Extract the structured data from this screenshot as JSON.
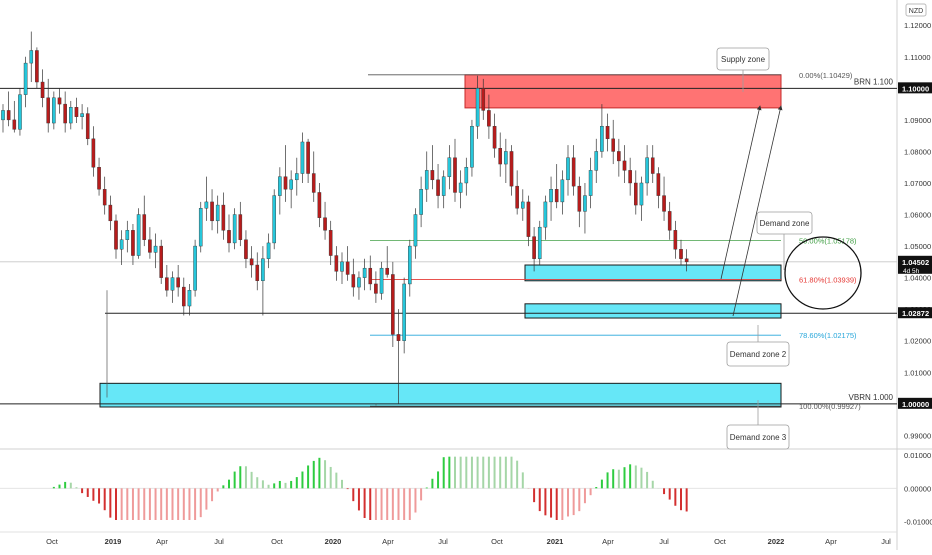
{
  "symbol_badge": "NZD",
  "top_text": "1.10429 (1.1...)",
  "colors": {
    "up": "#26c6da",
    "down": "#b71c1c",
    "supply_fill": "#f44336",
    "supply_fill_alpha": "#ff6b6b",
    "demand_fill": "#5ee6f7",
    "demand_border": "#1a1a1a",
    "fib_0": "#555555",
    "fib_50": "#43a047",
    "fib_618": "#e53935",
    "fib_786": "#26a6da",
    "fib_100": "#555555",
    "osc_up_strong": "#2ecc40",
    "osc_up_weak": "#a5d6a7",
    "osc_down_strong": "#d32f2f",
    "osc_down_weak": "#ef9a9a",
    "axis_text": "#333333",
    "grid": "#eeeeee"
  },
  "chart_data": {
    "type": "candlestick",
    "price_axis": {
      "ylim": [
        0.986,
        1.128
      ],
      "ticks": [
        "0.99000",
        "1.00000",
        "1.01000",
        "1.02000",
        "1.03000",
        "1.04000",
        "1.05000",
        "1.06000",
        "1.07000",
        "1.08000",
        "1.09000",
        "1.10000",
        "1.11000",
        "1.12000"
      ],
      "tick_values": [
        0.99,
        1.0,
        1.01,
        1.02,
        1.03,
        1.04,
        1.05,
        1.06,
        1.07,
        1.08,
        1.09,
        1.1,
        1.11,
        1.12
      ]
    },
    "time_axis": {
      "labels": [
        "Oct",
        "2019",
        "Apr",
        "Jul",
        "Oct",
        "2020",
        "Apr",
        "Jul",
        "Oct",
        "2021",
        "Apr",
        "Jul",
        "Oct",
        "2022",
        "Apr",
        "Jul"
      ],
      "bold": [
        false,
        true,
        false,
        false,
        false,
        true,
        false,
        false,
        false,
        true,
        false,
        false,
        false,
        true,
        false,
        false
      ]
    },
    "price_labels": [
      {
        "text": "1.10000",
        "value": 1.1,
        "style": "black"
      },
      {
        "text": "1.04502",
        "value": 1.04502,
        "style": "black",
        "sub": "4d 5h"
      },
      {
        "text": "1.02872",
        "value": 1.02872,
        "style": "black"
      },
      {
        "text": "1.00000",
        "value": 1.0,
        "style": "black"
      }
    ],
    "horizontal_lines": [
      {
        "label": "BRN 1.100",
        "value": 1.1
      },
      {
        "label": "",
        "value": 1.02872
      },
      {
        "label": "VBRN 1.000",
        "value": 1.0
      }
    ],
    "fib_levels": [
      {
        "label": "0.00%(1.10429)",
        "value": 1.10429,
        "color_key": "fib_0"
      },
      {
        "label": "50.00%(1.05178)",
        "value": 1.05178,
        "color_key": "fib_50"
      },
      {
        "label": "61.80%(1.03939)",
        "value": 1.03939,
        "color_key": "fib_618"
      },
      {
        "label": "78.60%(1.02175)",
        "value": 1.02175,
        "color_key": "fib_786"
      },
      {
        "label": "100.00%(0.99927)",
        "value": 0.99927,
        "color_key": "fib_100"
      }
    ],
    "zones": [
      {
        "label": "Supply zone",
        "kind": "supply",
        "top": 1.1043,
        "bottom": 1.0938
      },
      {
        "label": "Demand zone",
        "kind": "demand",
        "top": 1.044,
        "bottom": 1.039
      },
      {
        "label": "Demand zone 2",
        "kind": "demand",
        "top": 1.0317,
        "bottom": 1.0272
      },
      {
        "label": "Demand zone 3",
        "kind": "demand",
        "top": 1.0065,
        "bottom": 0.999
      }
    ],
    "oscillator": {
      "ticks": [
        "0.01000",
        "0.00000",
        "-0.01000"
      ],
      "tick_values": [
        0.01,
        0.0,
        -0.01
      ],
      "ylim": [
        -0.0125,
        0.0115
      ]
    },
    "candles": [
      [
        1.09,
        1.095,
        1.086,
        1.093
      ],
      [
        1.093,
        1.099,
        1.088,
        1.09
      ],
      [
        1.09,
        1.096,
        1.086,
        1.087
      ],
      [
        1.087,
        1.1,
        1.085,
        1.098
      ],
      [
        1.098,
        1.11,
        1.094,
        1.108
      ],
      [
        1.108,
        1.118,
        1.102,
        1.112
      ],
      [
        1.112,
        1.113,
        1.1,
        1.102
      ],
      [
        1.102,
        1.106,
        1.094,
        1.097
      ],
      [
        1.097,
        1.103,
        1.086,
        1.089
      ],
      [
        1.089,
        1.099,
        1.087,
        1.097
      ],
      [
        1.097,
        1.1,
        1.092,
        1.095
      ],
      [
        1.095,
        1.099,
        1.086,
        1.089
      ],
      [
        1.089,
        1.096,
        1.087,
        1.094
      ],
      [
        1.094,
        1.097,
        1.089,
        1.091
      ],
      [
        1.091,
        1.095,
        1.087,
        1.092
      ],
      [
        1.092,
        1.094,
        1.082,
        1.084
      ],
      [
        1.084,
        1.088,
        1.072,
        1.075
      ],
      [
        1.075,
        1.078,
        1.066,
        1.068
      ],
      [
        1.068,
        1.072,
        1.06,
        1.063
      ],
      [
        1.063,
        1.066,
        1.055,
        1.058
      ],
      [
        1.058,
        1.06,
        1.046,
        1.049
      ],
      [
        1.049,
        1.055,
        1.044,
        1.052
      ],
      [
        1.052,
        1.058,
        1.048,
        1.055
      ],
      [
        1.055,
        1.057,
        1.044,
        1.047
      ],
      [
        1.047,
        1.062,
        1.046,
        1.06
      ],
      [
        1.06,
        1.066,
        1.05,
        1.052
      ],
      [
        1.052,
        1.056,
        1.046,
        1.048
      ],
      [
        1.048,
        1.054,
        1.043,
        1.05
      ],
      [
        1.05,
        1.052,
        1.038,
        1.04
      ],
      [
        1.04,
        1.044,
        1.034,
        1.036
      ],
      [
        1.036,
        1.042,
        1.032,
        1.04
      ],
      [
        1.04,
        1.044,
        1.034,
        1.037
      ],
      [
        1.037,
        1.04,
        1.028,
        1.031
      ],
      [
        1.031,
        1.038,
        1.028,
        1.036
      ],
      [
        1.036,
        1.052,
        1.034,
        1.05
      ],
      [
        1.05,
        1.064,
        1.048,
        1.062
      ],
      [
        1.062,
        1.072,
        1.058,
        1.064
      ],
      [
        1.064,
        1.068,
        1.055,
        1.058
      ],
      [
        1.058,
        1.066,
        1.054,
        1.063
      ],
      [
        1.063,
        1.067,
        1.052,
        1.055
      ],
      [
        1.055,
        1.06,
        1.048,
        1.051
      ],
      [
        1.051,
        1.062,
        1.049,
        1.06
      ],
      [
        1.06,
        1.064,
        1.05,
        1.052
      ],
      [
        1.052,
        1.055,
        1.043,
        1.046
      ],
      [
        1.046,
        1.05,
        1.04,
        1.044
      ],
      [
        1.044,
        1.048,
        1.036,
        1.039
      ],
      [
        1.039,
        1.05,
        1.028,
        1.046
      ],
      [
        1.046,
        1.054,
        1.043,
        1.051
      ],
      [
        1.051,
        1.068,
        1.049,
        1.066
      ],
      [
        1.066,
        1.075,
        1.06,
        1.072
      ],
      [
        1.072,
        1.082,
        1.064,
        1.068
      ],
      [
        1.068,
        1.074,
        1.062,
        1.071
      ],
      [
        1.071,
        1.078,
        1.066,
        1.073
      ],
      [
        1.073,
        1.086,
        1.07,
        1.083
      ],
      [
        1.083,
        1.084,
        1.07,
        1.073
      ],
      [
        1.073,
        1.08,
        1.064,
        1.067
      ],
      [
        1.067,
        1.07,
        1.056,
        1.059
      ],
      [
        1.059,
        1.064,
        1.052,
        1.055
      ],
      [
        1.055,
        1.058,
        1.044,
        1.047
      ],
      [
        1.047,
        1.05,
        1.039,
        1.042
      ],
      [
        1.042,
        1.048,
        1.038,
        1.045
      ],
      [
        1.045,
        1.05,
        1.039,
        1.041
      ],
      [
        1.041,
        1.046,
        1.034,
        1.037
      ],
      [
        1.037,
        1.042,
        1.033,
        1.04
      ],
      [
        1.04,
        1.046,
        1.036,
        1.043
      ],
      [
        1.043,
        1.047,
        1.036,
        1.038
      ],
      [
        1.038,
        1.042,
        1.032,
        1.035
      ],
      [
        1.035,
        1.045,
        1.033,
        1.043
      ],
      [
        1.043,
        1.05,
        1.04,
        1.041
      ],
      [
        1.041,
        1.045,
        1.018,
        1.022
      ],
      [
        1.022,
        1.03,
        1.0,
        1.02
      ],
      [
        1.02,
        1.04,
        1.016,
        1.038
      ],
      [
        1.038,
        1.052,
        1.034,
        1.05
      ],
      [
        1.05,
        1.062,
        1.046,
        1.06
      ],
      [
        1.06,
        1.072,
        1.056,
        1.068
      ],
      [
        1.068,
        1.08,
        1.064,
        1.074
      ],
      [
        1.074,
        1.082,
        1.068,
        1.071
      ],
      [
        1.071,
        1.076,
        1.062,
        1.066
      ],
      [
        1.066,
        1.074,
        1.062,
        1.072
      ],
      [
        1.072,
        1.082,
        1.068,
        1.078
      ],
      [
        1.078,
        1.084,
        1.064,
        1.067
      ],
      [
        1.067,
        1.074,
        1.062,
        1.07
      ],
      [
        1.07,
        1.078,
        1.066,
        1.075
      ],
      [
        1.075,
        1.09,
        1.072,
        1.088
      ],
      [
        1.088,
        1.104,
        1.084,
        1.1
      ],
      [
        1.1,
        1.103,
        1.09,
        1.093
      ],
      [
        1.093,
        1.098,
        1.084,
        1.088
      ],
      [
        1.088,
        1.092,
        1.078,
        1.081
      ],
      [
        1.081,
        1.086,
        1.072,
        1.076
      ],
      [
        1.076,
        1.084,
        1.07,
        1.08
      ],
      [
        1.08,
        1.082,
        1.066,
        1.069
      ],
      [
        1.069,
        1.074,
        1.06,
        1.062
      ],
      [
        1.062,
        1.068,
        1.058,
        1.064
      ],
      [
        1.064,
        1.066,
        1.05,
        1.053
      ],
      [
        1.053,
        1.056,
        1.042,
        1.046
      ],
      [
        1.046,
        1.058,
        1.044,
        1.056
      ],
      [
        1.056,
        1.066,
        1.052,
        1.064
      ],
      [
        1.064,
        1.072,
        1.058,
        1.068
      ],
      [
        1.068,
        1.076,
        1.062,
        1.064
      ],
      [
        1.064,
        1.074,
        1.06,
        1.071
      ],
      [
        1.071,
        1.082,
        1.066,
        1.078
      ],
      [
        1.078,
        1.082,
        1.066,
        1.069
      ],
      [
        1.069,
        1.072,
        1.056,
        1.061
      ],
      [
        1.061,
        1.07,
        1.054,
        1.066
      ],
      [
        1.066,
        1.078,
        1.062,
        1.074
      ],
      [
        1.074,
        1.084,
        1.07,
        1.08
      ],
      [
        1.08,
        1.095,
        1.078,
        1.088
      ],
      [
        1.088,
        1.092,
        1.08,
        1.084
      ],
      [
        1.084,
        1.09,
        1.076,
        1.08
      ],
      [
        1.08,
        1.084,
        1.072,
        1.077
      ],
      [
        1.077,
        1.082,
        1.07,
        1.074
      ],
      [
        1.074,
        1.078,
        1.066,
        1.07
      ],
      [
        1.07,
        1.074,
        1.06,
        1.063
      ],
      [
        1.063,
        1.072,
        1.058,
        1.07
      ],
      [
        1.07,
        1.082,
        1.066,
        1.078
      ],
      [
        1.078,
        1.082,
        1.07,
        1.073
      ],
      [
        1.073,
        1.075,
        1.062,
        1.066
      ],
      [
        1.066,
        1.072,
        1.058,
        1.061
      ],
      [
        1.061,
        1.064,
        1.052,
        1.055
      ],
      [
        1.055,
        1.058,
        1.046,
        1.049
      ],
      [
        1.049,
        1.052,
        1.044,
        1.046
      ],
      [
        1.046,
        1.049,
        1.042,
        1.045
      ]
    ]
  }
}
